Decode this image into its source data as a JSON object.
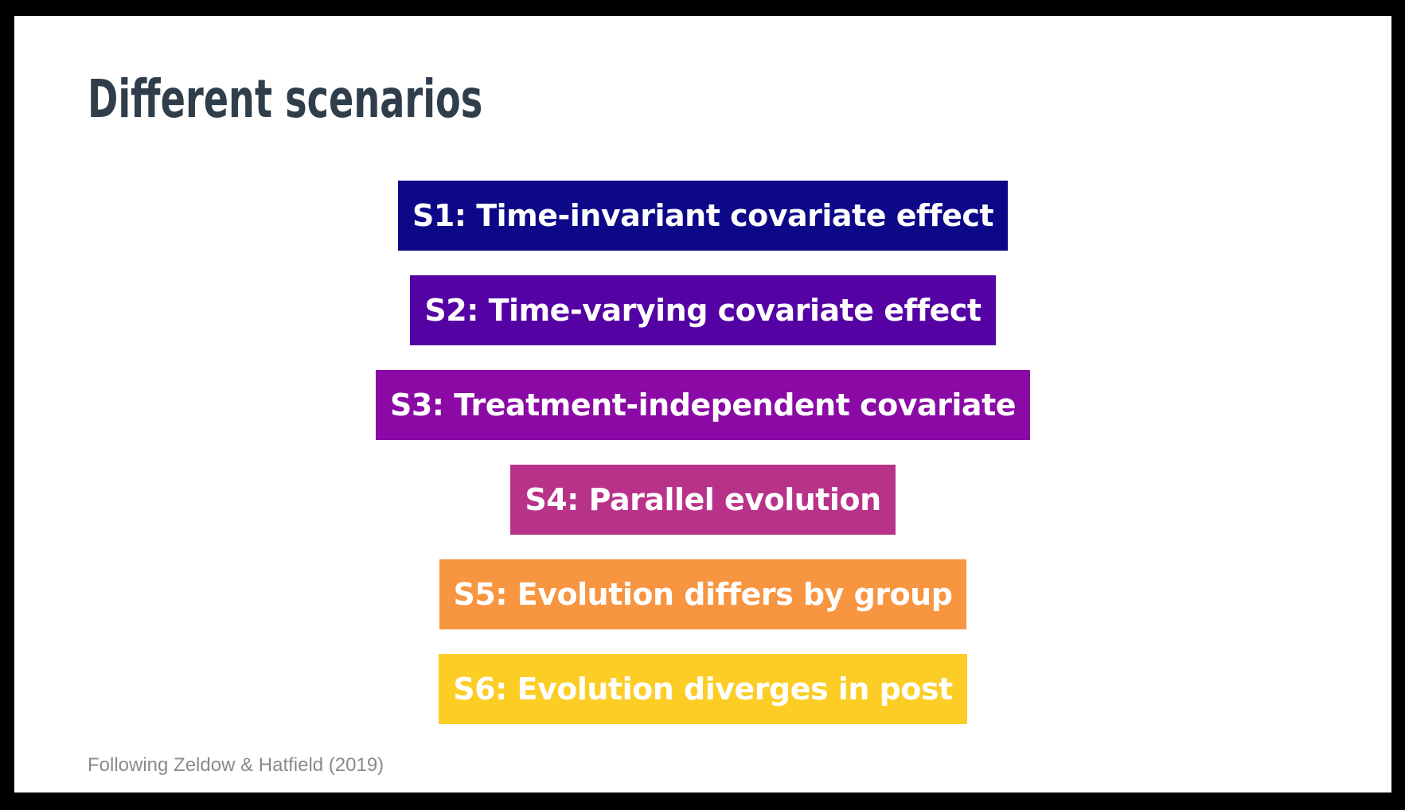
{
  "slide": {
    "title": "Different scenarios",
    "scenarios": [
      {
        "label": "S1: Time-invariant covariate effect",
        "color": "#0d0887"
      },
      {
        "label": "S2: Time-varying covariate effect",
        "color": "#5402a3"
      },
      {
        "label": "S3: Treatment-independent covariate",
        "color": "#8b0aa5"
      },
      {
        "label": "S4: Parallel evolution",
        "color": "#b93289"
      },
      {
        "label": "S5: Evolution differs by group",
        "color": "#f89540"
      },
      {
        "label": "S6: Evolution diverges in post",
        "color": "#fccd25"
      }
    ],
    "source": "Following Zeldow & Hatfield (2019)"
  }
}
